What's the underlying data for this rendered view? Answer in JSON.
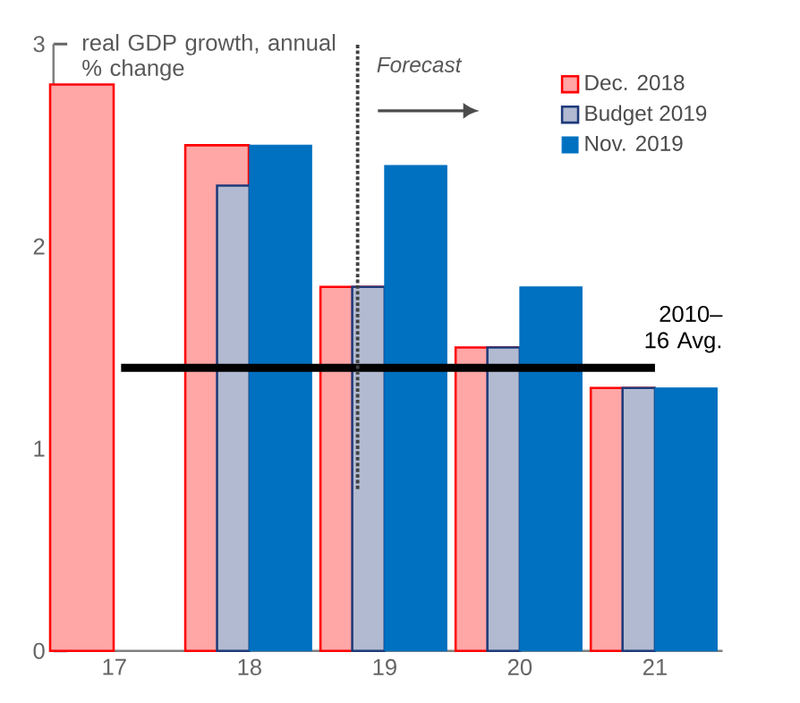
{
  "chart_data": {
    "type": "bar",
    "ylabel": "real GDP growth, annual % change",
    "categories": [
      "17",
      "18",
      "19",
      "20",
      "21"
    ],
    "series": [
      {
        "name": "Dec. 2018",
        "color": "#ff0000",
        "values": [
          2.8,
          2.5,
          1.8,
          1.5,
          1.3
        ]
      },
      {
        "name": "Budget 2019",
        "color": "#1f3a7a",
        "values": [
          null,
          2.3,
          1.8,
          1.5,
          1.3
        ]
      },
      {
        "name": "Nov. 2019",
        "color": "#0070c0",
        "values": [
          null,
          2.5,
          2.4,
          1.8,
          1.3
        ]
      }
    ],
    "ylim": [
      0,
      3
    ],
    "yticks": [
      0,
      1,
      2,
      3
    ],
    "ref_lines": [
      {
        "axis": "y",
        "value": 1.4,
        "label": "2010–16 Avg.",
        "color": "#000000",
        "line_style": "solid"
      },
      {
        "axis": "x",
        "value": "19",
        "label": "Forecast",
        "color": "#404040",
        "line_style": "dotted"
      }
    ],
    "legend": "top right",
    "grid": false
  }
}
